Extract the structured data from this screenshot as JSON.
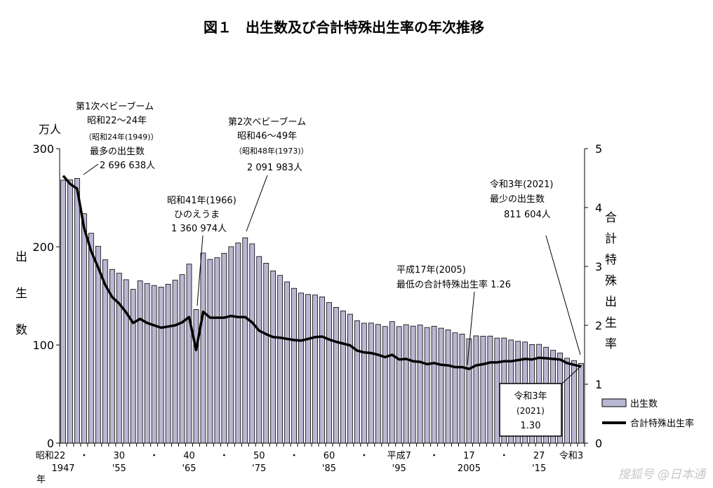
{
  "chart_data": {
    "type": "bar+line",
    "title": "図１　出生数及び合計特殊出生率の年次推移",
    "y_left": {
      "label": "出生数",
      "unit": "万人",
      "ticks": [
        "0",
        "100",
        "200",
        "300"
      ],
      "range": [
        0,
        300
      ]
    },
    "y_right": {
      "label": "合計特殊出生率",
      "ticks": [
        "0",
        "1",
        "2",
        "3",
        "4",
        "5"
      ],
      "range": [
        0,
        5
      ]
    },
    "x_start": 1947,
    "x_end": 2021,
    "x_ticks": [
      {
        "year": 1947,
        "era": "昭和22",
        "west": "1947"
      },
      {
        "year": 1950,
        "era": "・",
        "west": ""
      },
      {
        "year": 1955,
        "era": "30",
        "west": "'55"
      },
      {
        "year": 1960,
        "era": "・",
        "west": ""
      },
      {
        "year": 1965,
        "era": "40",
        "west": "'65"
      },
      {
        "year": 1970,
        "era": "・",
        "west": ""
      },
      {
        "year": 1975,
        "era": "50",
        "west": "'75"
      },
      {
        "year": 1980,
        "era": "・",
        "west": ""
      },
      {
        "year": 1985,
        "era": "60",
        "west": "'85"
      },
      {
        "year": 1990,
        "era": "・",
        "west": ""
      },
      {
        "year": 1995,
        "era": "平成7",
        "west": "'95"
      },
      {
        "year": 2000,
        "era": "・",
        "west": ""
      },
      {
        "year": 2005,
        "era": "17",
        "west": "2005"
      },
      {
        "year": 2010,
        "era": "・",
        "west": ""
      },
      {
        "year": 2015,
        "era": "27",
        "west": "'15"
      },
      {
        "year": 2021,
        "era": "令和3",
        "west": ""
      }
    ],
    "x_unit": "年",
    "series": [
      {
        "name": "出生数",
        "type": "bar",
        "color": "#b9b7d3",
        "values": [
          267.9,
          268.2,
          269.7,
          233.8,
          213.8,
          200.5,
          186.8,
          177.0,
          173.1,
          166.5,
          156.7,
          165.3,
          162.6,
          160.6,
          158.9,
          161.9,
          166.0,
          171.7,
          182.4,
          136.1,
          193.6,
          187.2,
          188.9,
          193.4,
          200.1,
          203.9,
          209.2,
          203.0,
          190.1,
          183.3,
          175.5,
          170.9,
          164.3,
          157.7,
          152.9,
          151.5,
          150.9,
          149.0,
          143.2,
          138.3,
          134.7,
          131.4,
          124.7,
          122.2,
          122.3,
          120.9,
          118.8,
          123.8,
          118.7,
          120.7,
          119.2,
          120.3,
          117.8,
          119.1,
          117.1,
          115.4,
          112.4,
          111.1,
          106.3,
          109.3,
          109.0,
          109.1,
          107.0,
          107.1,
          105.1,
          103.7,
          103.0,
          100.4,
          100.6,
          97.7,
          94.6,
          91.8,
          86.5,
          84.1,
          81.2
        ]
      },
      {
        "name": "合計特殊出生率",
        "type": "line",
        "color": "#000000",
        "values": [
          4.54,
          4.4,
          4.32,
          3.65,
          3.26,
          2.98,
          2.69,
          2.48,
          2.37,
          2.22,
          2.04,
          2.11,
          2.04,
          2.0,
          1.96,
          1.98,
          2.0,
          2.05,
          2.14,
          1.58,
          2.23,
          2.13,
          2.13,
          2.13,
          2.16,
          2.14,
          2.14,
          2.05,
          1.91,
          1.85,
          1.8,
          1.79,
          1.77,
          1.75,
          1.74,
          1.77,
          1.8,
          1.81,
          1.76,
          1.72,
          1.69,
          1.66,
          1.57,
          1.54,
          1.53,
          1.5,
          1.46,
          1.5,
          1.42,
          1.43,
          1.39,
          1.38,
          1.34,
          1.36,
          1.33,
          1.32,
          1.29,
          1.29,
          1.26,
          1.32,
          1.34,
          1.37,
          1.37,
          1.39,
          1.39,
          1.41,
          1.43,
          1.42,
          1.45,
          1.44,
          1.43,
          1.42,
          1.36,
          1.33,
          1.3
        ]
      }
    ],
    "legend": {
      "position": "right",
      "bar_label": "出生数",
      "line_label": "合計特殊出生率"
    },
    "annotations": {
      "boom1": [
        "第1次ベビーブーム",
        "昭和22～24年",
        "（昭和24年(1949)）",
        "最多の出生数",
        "2 696 638人"
      ],
      "boom2": [
        "第2次ベビーブーム",
        "昭和46～49年",
        "（昭和48年(1973)）",
        "2 091 983人"
      ],
      "hinoe": [
        "昭和41年(1966)",
        "ひのえうま",
        "1 360 974人"
      ],
      "lowest_tfr": [
        "平成17年(2005)",
        "最低の合計特殊出生率  1.26"
      ],
      "fewest": [
        "令和3年(2021)",
        "最少の出生数",
        "811 604人"
      ],
      "box": [
        "令和3年",
        "(2021)",
        "1.30"
      ]
    }
  },
  "watermark": "搜狐号 @日本通"
}
